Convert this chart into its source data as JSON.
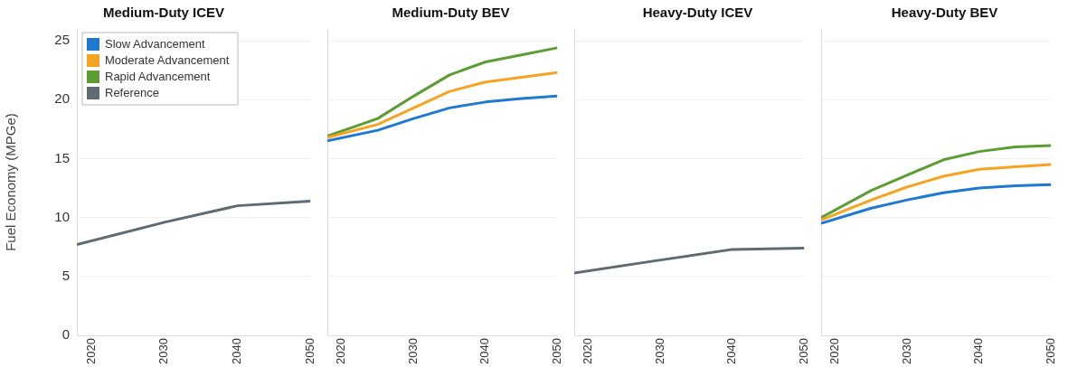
{
  "chart_data": [
    {
      "type": "line",
      "title": "Medium-Duty ICEV",
      "ylabel": "Fuel Economy (MPGe)",
      "x": [
        2018,
        2030,
        2040,
        2050
      ],
      "xlim": [
        2018,
        2050
      ],
      "xticks": [
        2020,
        2030,
        2040,
        2050
      ],
      "ylim": [
        0,
        26
      ],
      "yticks": [
        0,
        5,
        10,
        15,
        20,
        25
      ],
      "grid": "y",
      "legend": "top left",
      "series": [
        {
          "name": "Slow Advancement",
          "color": "#1f78d1",
          "values": [
            null,
            null,
            null,
            null
          ]
        },
        {
          "name": "Moderate Advancement",
          "color": "#f5a321",
          "values": [
            null,
            null,
            null,
            null
          ]
        },
        {
          "name": "Rapid Advancement",
          "color": "#5b9c33",
          "values": [
            null,
            null,
            null,
            null
          ]
        },
        {
          "name": "Reference",
          "color": "#5f6a72",
          "values": [
            7.7,
            9.6,
            11.0,
            11.4
          ]
        }
      ]
    },
    {
      "type": "line",
      "title": "Medium-Duty BEV",
      "x": [
        2018,
        2025,
        2030,
        2035,
        2040,
        2045,
        2050
      ],
      "xlim": [
        2018,
        2050
      ],
      "xticks": [
        2020,
        2030,
        2040,
        2050
      ],
      "ylim": [
        0,
        26
      ],
      "yticks": [
        0,
        5,
        10,
        15,
        20,
        25
      ],
      "grid": "y",
      "tick_labels": "x",
      "series": [
        {
          "color": "#1f78d1",
          "values": [
            16.5,
            17.4,
            18.4,
            19.3,
            19.8,
            20.1,
            20.3
          ]
        },
        {
          "color": "#f5a321",
          "values": [
            16.8,
            17.9,
            19.3,
            20.7,
            21.5,
            21.9,
            22.3
          ]
        },
        {
          "color": "#5b9c33",
          "values": [
            16.9,
            18.4,
            20.3,
            22.1,
            23.2,
            23.8,
            24.4
          ]
        }
      ]
    },
    {
      "type": "line",
      "title": "Heavy-Duty ICEV",
      "x": [
        2018,
        2030,
        2040,
        2050
      ],
      "xlim": [
        2018,
        2050
      ],
      "xticks": [
        2020,
        2030,
        2040,
        2050
      ],
      "ylim": [
        0,
        26
      ],
      "yticks": [
        0,
        5,
        10,
        15,
        20,
        25
      ],
      "grid": "y",
      "tick_labels": "x",
      "series": [
        {
          "color": "#5f6a72",
          "values": [
            5.3,
            6.4,
            7.3,
            7.4
          ]
        }
      ]
    },
    {
      "type": "line",
      "title": "Heavy-Duty BEV",
      "x": [
        2018,
        2025,
        2030,
        2035,
        2040,
        2045,
        2050
      ],
      "xlim": [
        2018,
        2050
      ],
      "xticks": [
        2020,
        2030,
        2040,
        2050
      ],
      "ylim": [
        0,
        26
      ],
      "yticks": [
        0,
        5,
        10,
        15,
        20,
        25
      ],
      "grid": "y",
      "tick_labels": "x",
      "series": [
        {
          "color": "#1f78d1",
          "values": [
            9.5,
            10.8,
            11.5,
            12.1,
            12.5,
            12.7,
            12.8
          ]
        },
        {
          "color": "#f5a321",
          "values": [
            9.8,
            11.5,
            12.6,
            13.5,
            14.1,
            14.3,
            14.5
          ]
        },
        {
          "color": "#5b9c33",
          "values": [
            10.0,
            12.3,
            13.6,
            14.9,
            15.6,
            16.0,
            16.1
          ]
        }
      ]
    }
  ]
}
